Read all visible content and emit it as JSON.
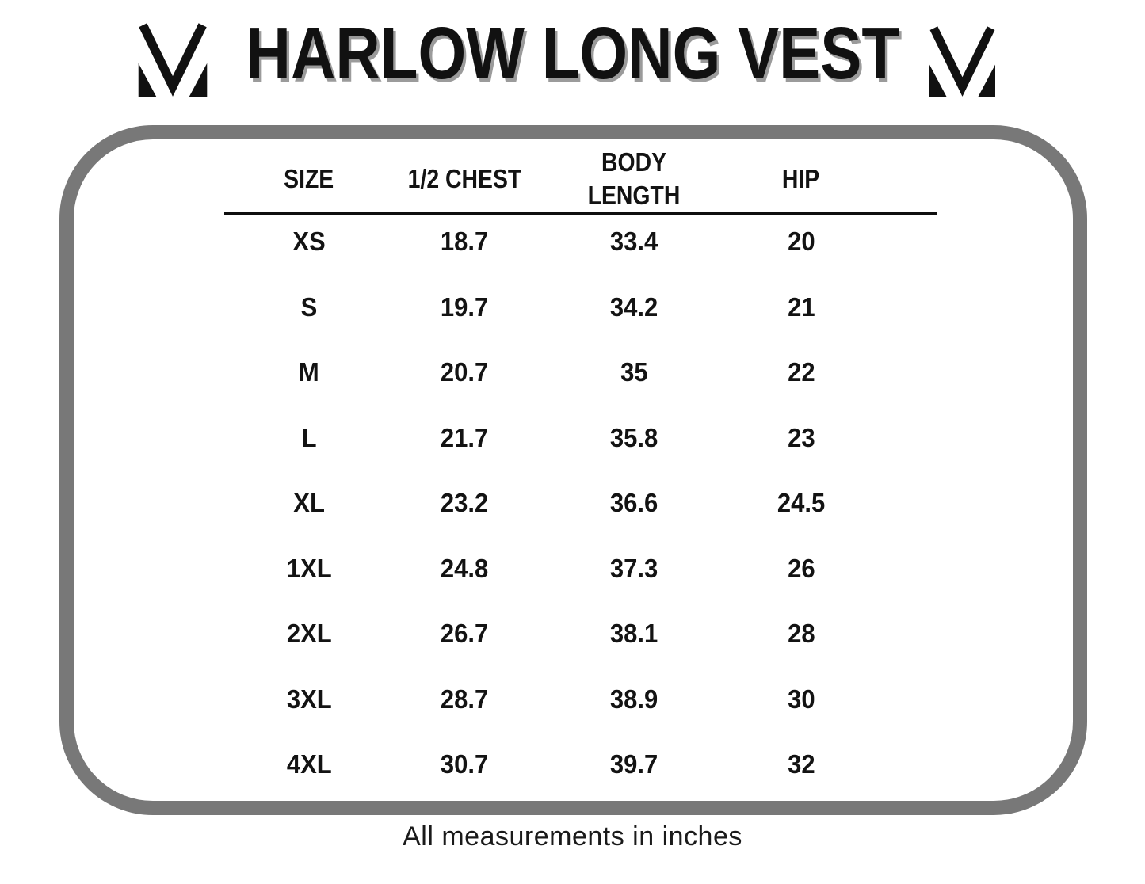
{
  "title": "HARLOW LONG VEST",
  "brand": {
    "logo_icon": "m-monogram-icon",
    "logo_color": "#111111"
  },
  "footer_note": "All measurements in inches",
  "colors": {
    "text": "#131313",
    "frame_border": "#787878",
    "title_shadow": "#9b9b9b",
    "header_rule": "#0f0f0f",
    "background": "#ffffff"
  },
  "chart_data": {
    "type": "table",
    "title": "HARLOW LONG VEST",
    "columns": [
      "SIZE",
      "1/2 CHEST",
      "BODY LENGTH",
      "HIP"
    ],
    "units": "inches",
    "note": "All measurements in inches",
    "rows": [
      [
        "XS",
        18.7,
        33.4,
        20
      ],
      [
        "S",
        19.7,
        34.2,
        21
      ],
      [
        "M",
        20.7,
        35,
        22
      ],
      [
        "L",
        21.7,
        35.8,
        23
      ],
      [
        "XL",
        23.2,
        36.6,
        24.5
      ],
      [
        "1XL",
        24.8,
        37.3,
        26
      ],
      [
        "2XL",
        26.7,
        38.1,
        28
      ],
      [
        "3XL",
        28.7,
        38.9,
        30
      ],
      [
        "4XL",
        30.7,
        39.7,
        32
      ]
    ]
  }
}
